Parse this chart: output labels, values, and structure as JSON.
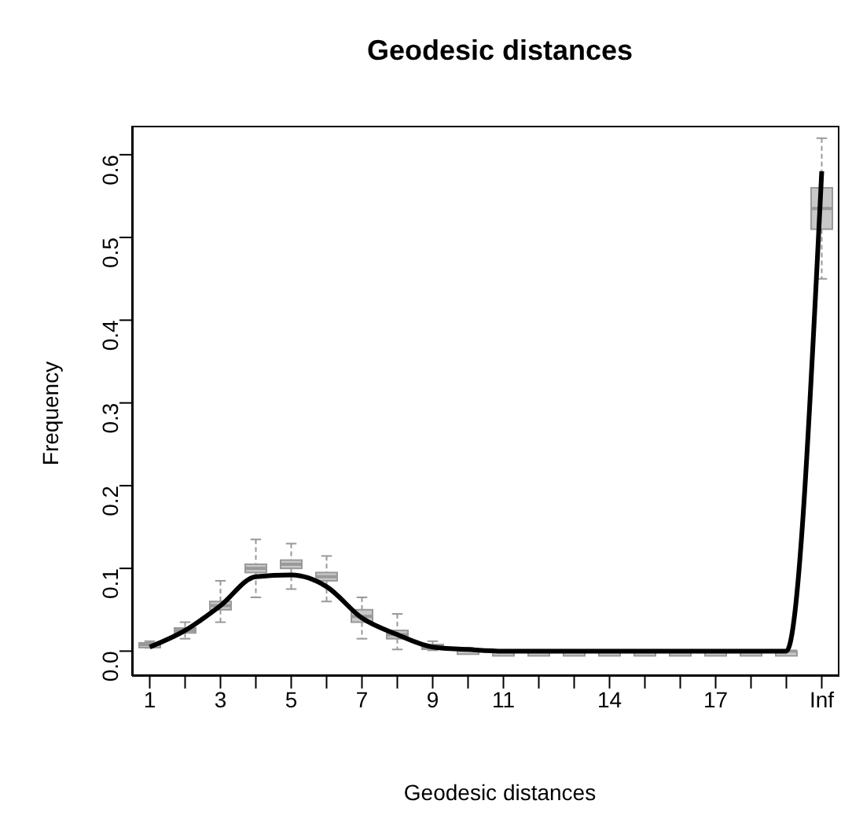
{
  "chart_data": {
    "type": "box",
    "title": "Geodesic distances",
    "xlabel": "Geodesic distances",
    "ylabel": "Frequency",
    "categories": [
      "1",
      null,
      "3",
      null,
      "5",
      null,
      "7",
      null,
      "9",
      null,
      "11",
      null,
      null,
      "14",
      null,
      null,
      "17",
      null,
      null,
      "Inf"
    ],
    "color": "#999999",
    "boxes": [
      {
        "low": 0.004,
        "q1": 0.006,
        "median": 0.008,
        "q3": 0.01,
        "high": 0.012
      },
      {
        "low": 0.015,
        "q1": 0.022,
        "median": 0.025,
        "q3": 0.028,
        "high": 0.035
      },
      {
        "low": 0.035,
        "q1": 0.05,
        "median": 0.055,
        "q3": 0.06,
        "high": 0.085
      },
      {
        "low": 0.065,
        "q1": 0.095,
        "median": 0.1,
        "q3": 0.105,
        "high": 0.135
      },
      {
        "low": 0.075,
        "q1": 0.1,
        "median": 0.105,
        "q3": 0.11,
        "high": 0.13
      },
      {
        "low": 0.06,
        "q1": 0.085,
        "median": 0.09,
        "q3": 0.095,
        "high": 0.115
      },
      {
        "low": 0.015,
        "q1": 0.035,
        "median": 0.042,
        "q3": 0.05,
        "high": 0.065
      },
      {
        "low": 0.002,
        "q1": 0.015,
        "median": 0.02,
        "q3": 0.025,
        "high": 0.045
      },
      {
        "low": 0.001,
        "q1": 0.003,
        "median": 0.005,
        "q3": 0.008,
        "high": 0.012
      },
      {
        "low": 0,
        "q1": 0.001,
        "median": 0.0015,
        "q3": 0.002,
        "high": 0.004
      },
      {
        "low": 0,
        "q1": 0,
        "median": 0,
        "q3": 0,
        "high": 0
      },
      {
        "low": 0,
        "q1": 0,
        "median": 0,
        "q3": 0,
        "high": 0
      },
      {
        "low": 0,
        "q1": 0,
        "median": 0,
        "q3": 0,
        "high": 0
      },
      {
        "low": 0,
        "q1": 0,
        "median": 0,
        "q3": 0,
        "high": 0
      },
      {
        "low": 0,
        "q1": 0,
        "median": 0,
        "q3": 0,
        "high": 0
      },
      {
        "low": 0,
        "q1": 0,
        "median": 0,
        "q3": 0,
        "high": 0
      },
      {
        "low": 0,
        "q1": 0,
        "median": 0,
        "q3": 0,
        "high": 0
      },
      {
        "low": 0,
        "q1": 0,
        "median": 0,
        "q3": 0,
        "high": 0
      },
      {
        "low": 0,
        "q1": 0,
        "median": 0,
        "q3": 0,
        "high": 0
      },
      {
        "low": 0.45,
        "q1": 0.51,
        "median": 0.535,
        "q3": 0.56,
        "high": 0.62
      }
    ],
    "series": [
      {
        "type": "line",
        "color": "#000000",
        "marker": "none",
        "values": [
          0.005,
          0.025,
          0.055,
          0.09,
          0.092,
          0.078,
          0.04,
          0.02,
          0.005,
          0.002,
          0,
          0,
          0,
          0,
          0,
          0,
          0,
          0,
          0,
          0.58
        ]
      }
    ],
    "ylim": [
      -0.03,
      0.635
    ],
    "yticks": [
      {
        "value": 0,
        "label": "0.0"
      },
      0.1,
      0.2,
      0.3,
      0.4,
      0.5,
      0.6
    ],
    "grid": false
  }
}
